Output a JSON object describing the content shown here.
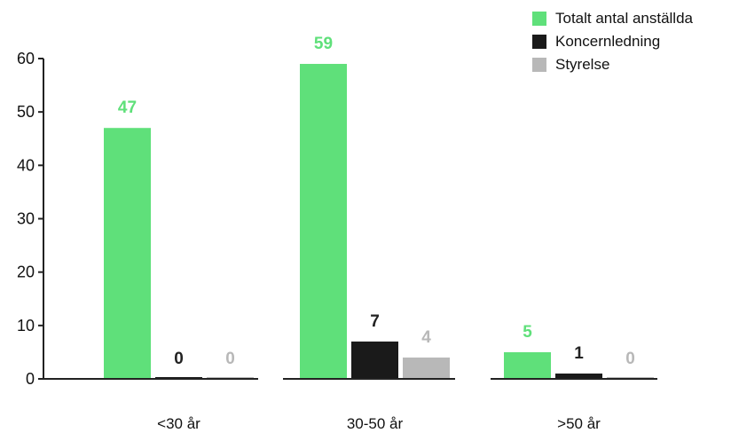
{
  "chart_data": {
    "type": "bar",
    "categories": [
      "<30 år",
      "30-50 år",
      ">50 år"
    ],
    "series": [
      {
        "name": "Totalt antal anställda",
        "values": [
          47,
          59,
          5
        ],
        "color": "#5fe07a",
        "label_color": "#5fe07a"
      },
      {
        "name": "Koncernledning",
        "values": [
          0,
          7,
          1
        ],
        "color": "#1a1a1a",
        "label_color": "#222222"
      },
      {
        "name": "Styrelse",
        "values": [
          0,
          4,
          0
        ],
        "color": "#b8b8b8",
        "label_color": "#b8b8b8"
      }
    ],
    "y_ticks": [
      0,
      10,
      20,
      30,
      40,
      50,
      60
    ],
    "ylim": [
      0,
      60
    ],
    "grid": false,
    "legend": "top-right"
  }
}
